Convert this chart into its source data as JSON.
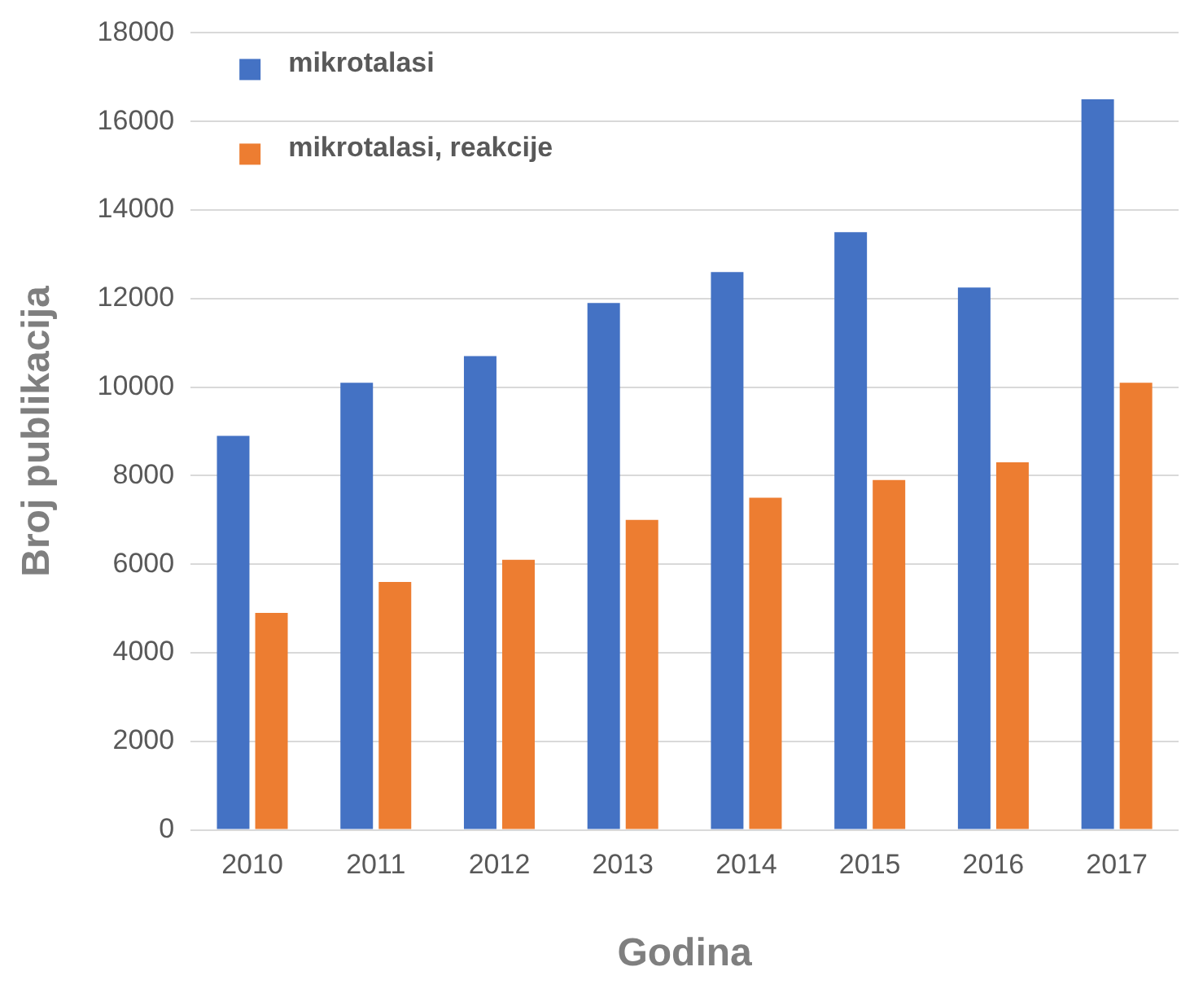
{
  "chart_data": {
    "type": "bar",
    "xlabel": "Godina",
    "ylabel": "Broj publikacija",
    "categories": [
      "2010",
      "2011",
      "2012",
      "2013",
      "2014",
      "2015",
      "2016",
      "2017"
    ],
    "series": [
      {
        "name": "mikrotalasi",
        "color": "#4472c4",
        "values": [
          8900,
          10100,
          10700,
          11900,
          12600,
          13500,
          12250,
          16500
        ]
      },
      {
        "name": "mikrotalasi, reakcije",
        "color": "#ed7d31",
        "values": [
          4900,
          5600,
          6100,
          7000,
          7500,
          7900,
          8300,
          10100
        ]
      }
    ],
    "ylim": [
      0,
      18000
    ],
    "yticks": [
      0,
      2000,
      4000,
      6000,
      8000,
      10000,
      12000,
      14000,
      16000,
      18000
    ],
    "grid": "y",
    "legend": "top left"
  }
}
